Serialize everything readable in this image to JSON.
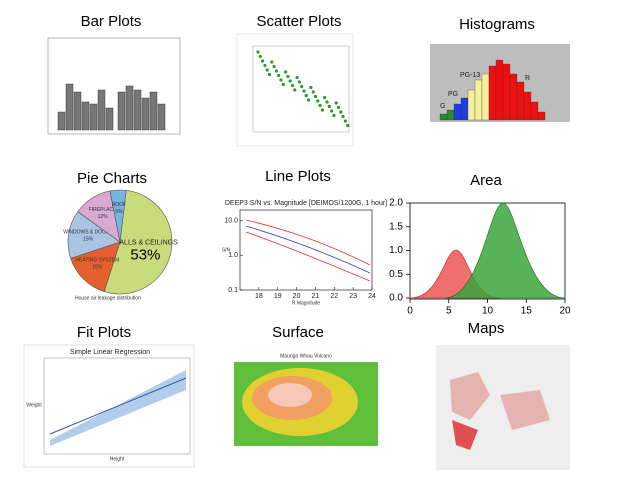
{
  "tiles": [
    {
      "title": "Bar Plots"
    },
    {
      "title": "Scatter Plots"
    },
    {
      "title": "Histograms",
      "labels": [
        "PG-13",
        "R",
        "PG",
        "G"
      ]
    },
    {
      "title": "Pie Charts",
      "slices": [
        "WALLS & CEILINGS",
        "HEATING SYSTEM",
        "WINDOWS & DOORS",
        "FIREPLACE",
        "ROOF"
      ],
      "values": [
        53,
        15,
        15,
        12,
        5
      ],
      "value_labels": [
        "53%",
        "15%",
        "15%",
        "12%",
        "5%"
      ],
      "colors": [
        "#cadb7c",
        "#e5602e",
        "#aac4e4",
        "#d8a9d2",
        "#74b3e2"
      ],
      "caption": "House air leakage distribution"
    },
    {
      "title": "Line  Plots",
      "plot_title": "DEEP3 S/N vs. Magnitude [DEIMOS/1200G, 1 hour]",
      "xlabel": "R Magnitude",
      "ylabel": "S/N",
      "xlim": [
        17,
        24
      ],
      "xticks": [
        18,
        19,
        20,
        21,
        22,
        23,
        24
      ],
      "ylim": [
        0.1,
        20
      ],
      "log_y": true,
      "yticks": [
        {
          "value": 10,
          "label": "10.0"
        },
        {
          "value": 1,
          "label": "1.0"
        },
        {
          "value": 0.1,
          "label": "0.1"
        }
      ]
    },
    {
      "title": "Area",
      "xlim": [
        0,
        20
      ],
      "xticks": [
        0,
        5,
        10,
        15,
        20
      ],
      "ylim": [
        0,
        2
      ],
      "yticks": [
        {
          "value": 0,
          "label": "0.0"
        },
        {
          "value": 0.5,
          "label": "0.5"
        },
        {
          "value": 1,
          "label": "1.0"
        },
        {
          "value": 1.5,
          "label": "1.5"
        },
        {
          "value": 2,
          "label": "2.0"
        }
      ]
    },
    {
      "title": "Fit Plots",
      "plot_title": "Simple Linear Regression",
      "xlabel": "Height",
      "ylabel": "Weight"
    },
    {
      "title": "Surface",
      "plot_title": "Maunga Whau Volcano"
    },
    {
      "title": "Maps"
    }
  ]
}
